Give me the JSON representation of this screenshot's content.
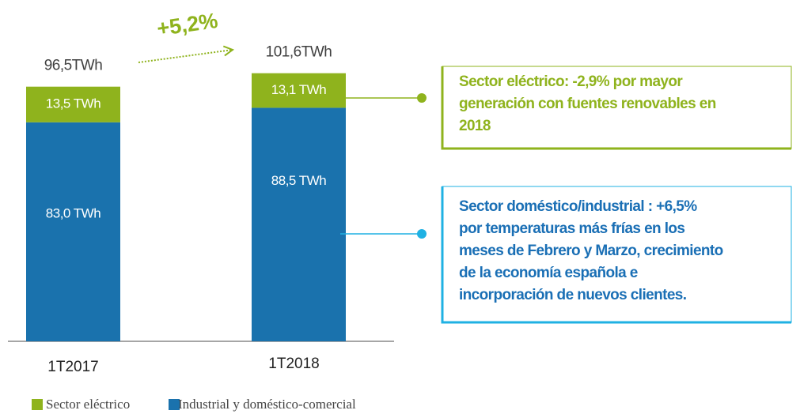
{
  "chart_data": {
    "type": "stacked-bar",
    "categories": [
      "1T2017",
      "1T2018"
    ],
    "series": [
      {
        "name": "Industrial y doméstico-comercial",
        "color": "#1a72ad",
        "values": [
          83.0,
          88.5
        ],
        "value_labels": [
          "83,0 TWh",
          "88,5 TWh"
        ]
      },
      {
        "name": "Sector eléctrico",
        "color": "#8fb31d",
        "values": [
          13.5,
          13.1
        ],
        "value_labels": [
          "13,5 TWh",
          "13,1 TWh"
        ]
      }
    ],
    "totals": [
      96.5,
      101.6
    ],
    "total_labels": [
      "96,5TWh",
      "101,6TWh"
    ],
    "growth": "+5,2%",
    "annotations": [
      {
        "color": "#8fb31d",
        "lines": [
          "Sector eléctrico: -2,9% por mayor",
          "generación con fuentes renovables en",
          "2018"
        ]
      },
      {
        "color": "#1fb1e3",
        "text_color": "#1a6fb5",
        "lines": [
          "Sector doméstico/industrial : +6,5%",
          "por temperaturas más frías en los",
          "meses de Febrero y Marzo, crecimiento",
          "de la economía española e",
          "incorporación de nuevos clientes."
        ]
      }
    ]
  }
}
